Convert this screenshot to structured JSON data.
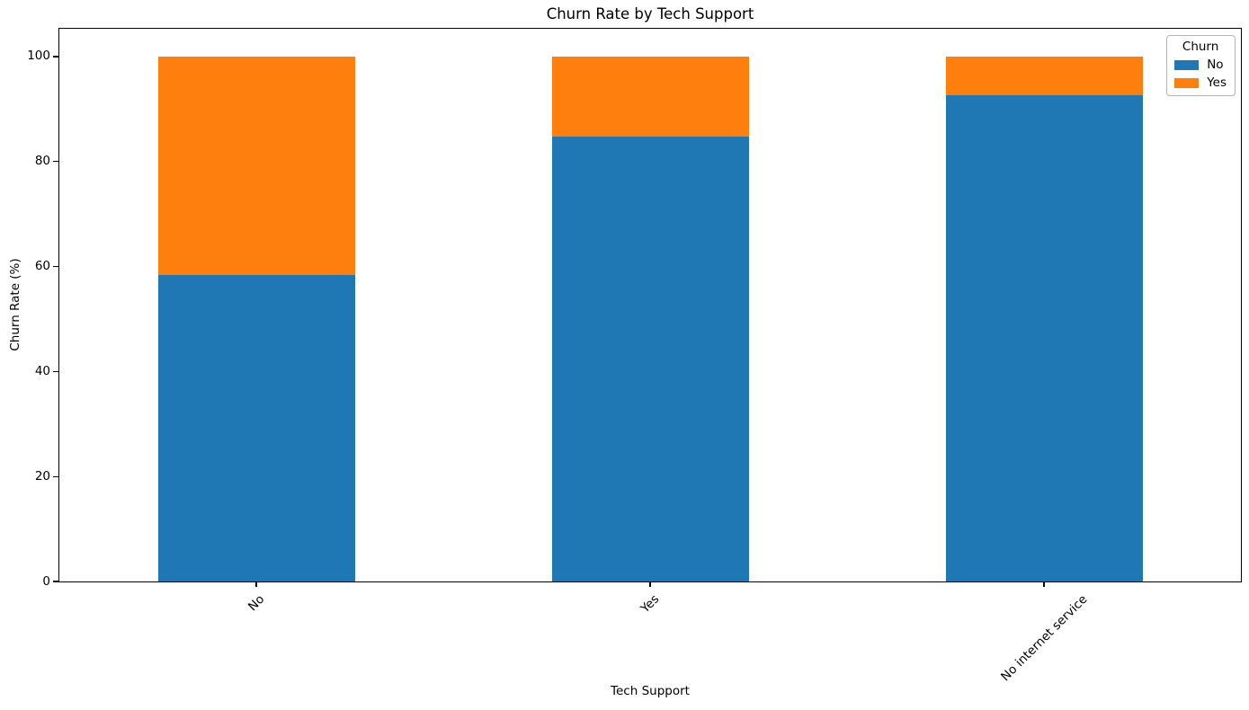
{
  "chart_data": {
    "type": "bar",
    "stacked": true,
    "title": "Churn Rate by Tech Support",
    "xlabel": "Tech Support",
    "ylabel": "Churn Rate (%)",
    "categories": [
      "No",
      "Yes",
      "No internet service"
    ],
    "series": [
      {
        "name": "No",
        "color": "#1f77b4",
        "values": [
          58.4,
          84.8,
          92.6
        ]
      },
      {
        "name": "Yes",
        "color": "#ff7f0e",
        "values": [
          41.6,
          15.2,
          7.4
        ]
      }
    ],
    "yticks": [
      0,
      20,
      40,
      60,
      80,
      100
    ],
    "ylim": [
      0,
      105.3
    ],
    "legend_title": "Churn",
    "legend_position": "upper right",
    "grid": false,
    "bar_width_fraction": 0.5,
    "xtick_rotation": 45
  }
}
